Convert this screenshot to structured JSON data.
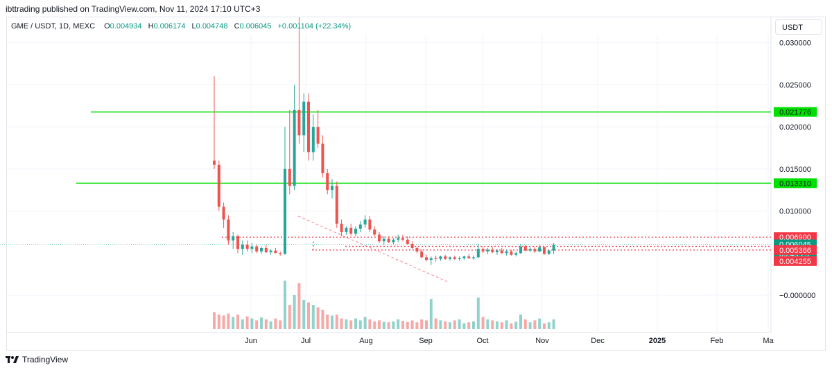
{
  "header": {
    "published_text": "ibttrading published on TradingView.com, Nov 11, 2024 17:10 UTC+3"
  },
  "legend": {
    "symbol": "GME / USDT, 1D, MEXC",
    "o_label": "O",
    "o_value": "0.004934",
    "h_label": "H",
    "h_value": "0.006174",
    "l_label": "L",
    "l_value": "0.004748",
    "c_label": "C",
    "c_value": "0.006045",
    "change": "+0.001104 (+22.34%)"
  },
  "currency_button": "USDT",
  "footer": {
    "brand": "TradingView"
  },
  "colors": {
    "up": "#26a69a",
    "down": "#ef5350",
    "support_line": "#00e000",
    "resistance_line": "#f23645",
    "price_tag": "#089981",
    "axis_text": "#131722"
  },
  "chart_data": {
    "type": "candlestick",
    "x_axis_labels": [
      "Jun",
      "Jul",
      "Aug",
      "Sep",
      "Oct",
      "Nov",
      "Dec",
      "2025",
      "Feb",
      "Ma"
    ],
    "y_axis_labels": [
      "0.030000",
      "0.025000",
      "0.020000",
      "0.015000",
      "0.010000",
      "−0.000000"
    ],
    "ylim": [
      -0.0008,
      0.0325
    ],
    "horizontal_levels": [
      {
        "label": "0.021776",
        "value": 0.021776,
        "style": "solid-green"
      },
      {
        "label": "0.013310",
        "value": 0.01331,
        "style": "solid-green"
      },
      {
        "label": "0.006900",
        "value": 0.0069,
        "style": "dotted-red"
      },
      {
        "label": "0.005366",
        "value": 0.005366,
        "style": "dotted-red"
      },
      {
        "label": "0.004255",
        "value": 0.004255,
        "style": "tag-red"
      }
    ],
    "current_price": {
      "label": "0.006045",
      "value": 0.006045,
      "countdown": "09:49:25"
    },
    "candles": [
      [
        0.016,
        0.026,
        0.015,
        0.0155
      ],
      [
        0.0155,
        0.016,
        0.01,
        0.0105
      ],
      [
        0.0105,
        0.011,
        0.008,
        0.009
      ],
      [
        0.009,
        0.0095,
        0.006,
        0.0065
      ],
      [
        0.0065,
        0.0075,
        0.0055,
        0.007
      ],
      [
        0.007,
        0.0072,
        0.005,
        0.0055
      ],
      [
        0.0055,
        0.0065,
        0.0048,
        0.006
      ],
      [
        0.006,
        0.0065,
        0.0052,
        0.0055
      ],
      [
        0.0055,
        0.0062,
        0.005,
        0.0058
      ],
      [
        0.0058,
        0.006,
        0.005,
        0.0052
      ],
      [
        0.0052,
        0.0058,
        0.0049,
        0.0056
      ],
      [
        0.0056,
        0.006,
        0.005,
        0.0051
      ],
      [
        0.0051,
        0.0055,
        0.0048,
        0.0053
      ],
      [
        0.0053,
        0.0056,
        0.005,
        0.005
      ],
      [
        0.005,
        0.0052,
        0.0047,
        0.0049
      ],
      [
        0.0049,
        0.02,
        0.0048,
        0.015
      ],
      [
        0.015,
        0.022,
        0.012,
        0.013
      ],
      [
        0.013,
        0.025,
        0.0125,
        0.022
      ],
      [
        0.022,
        0.033,
        0.018,
        0.019
      ],
      [
        0.019,
        0.024,
        0.017,
        0.023
      ],
      [
        0.023,
        0.024,
        0.016,
        0.017
      ],
      [
        0.017,
        0.0215,
        0.016,
        0.02
      ],
      [
        0.02,
        0.022,
        0.0175,
        0.018
      ],
      [
        0.018,
        0.019,
        0.014,
        0.0145
      ],
      [
        0.0145,
        0.015,
        0.012,
        0.0125
      ],
      [
        0.0125,
        0.0138,
        0.0115,
        0.013
      ],
      [
        0.013,
        0.0135,
        0.008,
        0.0085
      ],
      [
        0.0085,
        0.009,
        0.007,
        0.0075
      ],
      [
        0.0075,
        0.0082,
        0.0072,
        0.008
      ],
      [
        0.008,
        0.0085,
        0.0071,
        0.0073
      ],
      [
        0.0073,
        0.0082,
        0.007,
        0.0079
      ],
      [
        0.0079,
        0.0088,
        0.0075,
        0.0084
      ],
      [
        0.0084,
        0.0095,
        0.008,
        0.009
      ],
      [
        0.009,
        0.0094,
        0.0075,
        0.0078
      ],
      [
        0.0078,
        0.0082,
        0.007,
        0.0072
      ],
      [
        0.0072,
        0.0075,
        0.0062,
        0.0064
      ],
      [
        0.0064,
        0.007,
        0.006,
        0.0067
      ],
      [
        0.0067,
        0.007,
        0.0062,
        0.0063
      ],
      [
        0.0063,
        0.0068,
        0.0061,
        0.0066
      ],
      [
        0.0066,
        0.0072,
        0.0063,
        0.0068
      ],
      [
        0.0068,
        0.0072,
        0.0064,
        0.0066
      ],
      [
        0.0066,
        0.007,
        0.006,
        0.0061
      ],
      [
        0.0061,
        0.0064,
        0.0055,
        0.0056
      ],
      [
        0.0056,
        0.0058,
        0.005,
        0.0052
      ],
      [
        0.0052,
        0.0055,
        0.0044,
        0.0045
      ],
      [
        0.0045,
        0.0048,
        0.004,
        0.0042
      ],
      [
        0.0042,
        0.0046,
        0.0036,
        0.0044
      ],
      [
        0.0044,
        0.0047,
        0.004,
        0.0043
      ],
      [
        0.0043,
        0.0047,
        0.0041,
        0.0046
      ],
      [
        0.0046,
        0.0048,
        0.0042,
        0.0043
      ],
      [
        0.0043,
        0.0046,
        0.0041,
        0.0045
      ],
      [
        0.0045,
        0.0047,
        0.0042,
        0.0043
      ],
      [
        0.0043,
        0.0046,
        0.0041,
        0.0044
      ],
      [
        0.0044,
        0.0047,
        0.0042,
        0.0046
      ],
      [
        0.0046,
        0.0049,
        0.0043,
        0.0044
      ],
      [
        0.0044,
        0.0047,
        0.0042,
        0.0045
      ],
      [
        0.0045,
        0.0061,
        0.0044,
        0.0055
      ],
      [
        0.0055,
        0.0058,
        0.005,
        0.0052
      ],
      [
        0.0052,
        0.0056,
        0.0049,
        0.0054
      ],
      [
        0.0054,
        0.0057,
        0.005,
        0.0051
      ],
      [
        0.0051,
        0.0055,
        0.0048,
        0.0053
      ],
      [
        0.0053,
        0.0056,
        0.0049,
        0.005
      ],
      [
        0.005,
        0.0054,
        0.0047,
        0.0052
      ],
      [
        0.0052,
        0.0054,
        0.0047,
        0.0048
      ],
      [
        0.0048,
        0.0052,
        0.0046,
        0.005
      ],
      [
        0.005,
        0.0061,
        0.0049,
        0.0058
      ],
      [
        0.0058,
        0.006,
        0.0052,
        0.0053
      ],
      [
        0.0053,
        0.0057,
        0.0051,
        0.0055
      ],
      [
        0.0055,
        0.0058,
        0.005,
        0.0052
      ],
      [
        0.0052,
        0.006,
        0.0051,
        0.0057
      ],
      [
        0.0057,
        0.0058,
        0.0048,
        0.0049
      ],
      [
        0.0049,
        0.0054,
        0.0048,
        0.0053
      ],
      [
        0.0053,
        0.0062,
        0.0049,
        0.006
      ]
    ],
    "volume": [
      0.35,
      0.3,
      0.28,
      0.32,
      0.25,
      0.3,
      0.2,
      0.26,
      0.22,
      0.18,
      0.24,
      0.2,
      0.16,
      0.22,
      0.18,
      1.0,
      0.5,
      0.7,
      0.95,
      0.6,
      0.55,
      0.5,
      0.45,
      0.4,
      0.3,
      0.28,
      0.3,
      0.22,
      0.2,
      0.18,
      0.22,
      0.18,
      0.25,
      0.2,
      0.16,
      0.18,
      0.15,
      0.14,
      0.16,
      0.2,
      0.17,
      0.15,
      0.18,
      0.14,
      0.2,
      0.18,
      0.62,
      0.22,
      0.18,
      0.16,
      0.14,
      0.18,
      0.2,
      0.12,
      0.14,
      0.16,
      0.65,
      0.25,
      0.2,
      0.18,
      0.16,
      0.14,
      0.18,
      0.12,
      0.15,
      0.3,
      0.2,
      0.14,
      0.18,
      0.22,
      0.12,
      0.14,
      0.2
    ]
  }
}
